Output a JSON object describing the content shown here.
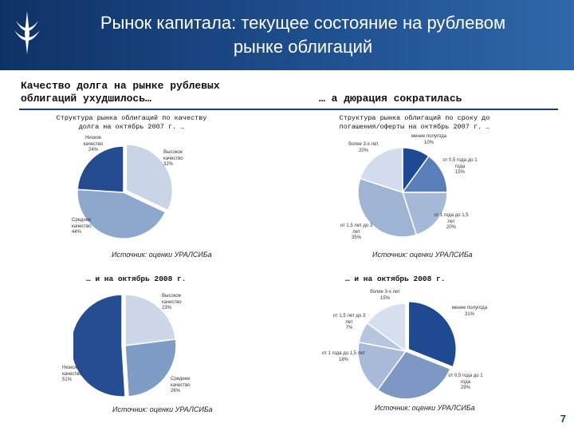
{
  "header": {
    "title_line1": "Рынок капитала: текущее состояние на рублевом",
    "title_line2": "рынке облигаций",
    "brand_color": "#0f3266"
  },
  "sections": {
    "left_heading_line1": "Качество долга на рынке рублевых",
    "left_heading_line2": "облигаций ухудшилось…",
    "right_heading": "… а дюрация сократилась"
  },
  "chart_titles": {
    "quality_line1": "Структура рынка облигаций по качеству",
    "quality_line2": "долга на октябрь 2007 г. …",
    "duration_line1": "Структура рынка облигаций по сроку до",
    "duration_line2": "погашения/оферты на октябрь 2007 г. …"
  },
  "source_text": "Источник: оценки УРАЛСИБа",
  "period_2008": "… и на октябрь 2008 г.",
  "page_number": "7",
  "chart_data": [
    {
      "type": "pie",
      "period": "октябрь 2007",
      "slices": [
        {
          "label": "Высокое качество",
          "value": 32,
          "value_text": "32%",
          "color": "#c9d4e6"
        },
        {
          "label": "Среднее качество",
          "value": 44,
          "value_text": "44%",
          "color": "#8ea8cd"
        },
        {
          "label": "Низкое качество",
          "value": 24,
          "value_text": "24%",
          "color": "#244b8f"
        }
      ]
    },
    {
      "type": "pie",
      "period": "октябрь 2007",
      "slices": [
        {
          "label": "менее полугода",
          "value": 10,
          "value_text": "10%",
          "color": "#1e4a93"
        },
        {
          "label": "от 0,5 года до 1 года",
          "value": 15,
          "value_text": "15%",
          "color": "#5a7fb8"
        },
        {
          "label": "от 1 года до 1,5 лет",
          "value": 20,
          "value_text": "20%",
          "color": "#a5b8d6"
        },
        {
          "label": "от 1,5 лет до 3 лет",
          "value": 35,
          "value_text": "35%",
          "color": "#9fb3d3"
        },
        {
          "label": "более 3-х лет",
          "value": 20,
          "value_text": "20%",
          "color": "#d3dced"
        }
      ]
    },
    {
      "type": "pie",
      "period": "октябрь 2008",
      "slices": [
        {
          "label": "Высокое качество",
          "value": 23,
          "value_text": "23%",
          "color": "#cdd7e8"
        },
        {
          "label": "Среднее качество",
          "value": 26,
          "value_text": "26%",
          "color": "#7f9cc7"
        },
        {
          "label": "Низкое качество",
          "value": 51,
          "value_text": "51%",
          "color": "#264d92"
        }
      ]
    },
    {
      "type": "pie",
      "period": "октябрь 2008",
      "slices": [
        {
          "label": "менее полугода",
          "value": 31,
          "value_text": "31%",
          "color": "#1f4a92"
        },
        {
          "label": "от 0,5 года до 1 года",
          "value": 29,
          "value_text": "29%",
          "color": "#7d98c4"
        },
        {
          "label": "от 1 года до 1,5 лет",
          "value": 18,
          "value_text": "18%",
          "color": "#a9bbd8"
        },
        {
          "label": "от 1,5 лет до 3 лет",
          "value": 7,
          "value_text": "7%",
          "color": "#b6c6df"
        },
        {
          "label": "более 3-х лет",
          "value": 15,
          "value_text": "15%",
          "color": "#d6dfee"
        }
      ]
    }
  ]
}
